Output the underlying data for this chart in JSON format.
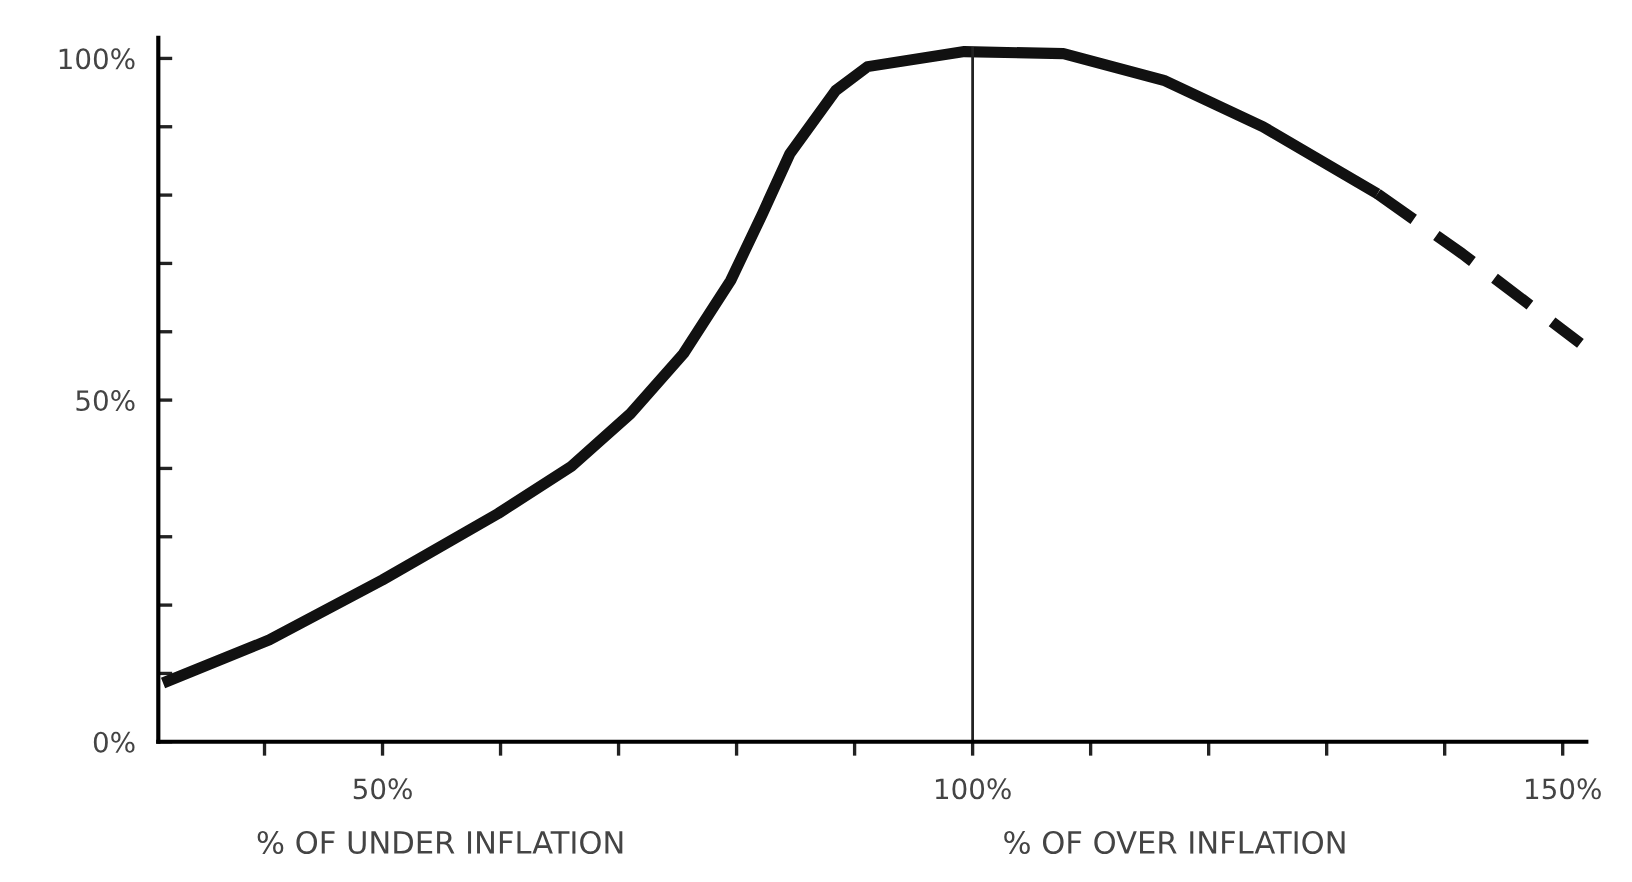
{
  "chart_data": {
    "type": "line",
    "series": [
      {
        "color": "#111111",
        "line_style": "solid",
        "x": [
          31.4,
          40.4,
          50,
          59.8,
          66,
          71,
          75.5,
          79.5,
          82.2,
          84.5,
          88.4,
          91.1,
          99.3,
          107.7,
          116.2,
          124.6,
          134.3
        ],
        "values": [
          8.6,
          14.9,
          23.7,
          33.4,
          40.3,
          48,
          56.8,
          67.5,
          77.3,
          86,
          95.3,
          98.8,
          101,
          100.7,
          96.8,
          90,
          80.2
        ]
      },
      {
        "color": "#111111",
        "line_style": "dashed",
        "x": [
          134.3,
          141.5,
          151.5
        ],
        "values": [
          80.2,
          71.4,
          58.3
        ]
      }
    ],
    "xlim": [
      31,
      152
    ],
    "ylim": [
      0,
      103
    ],
    "xticks": [
      {
        "value": 40,
        "label": null
      },
      {
        "value": 50,
        "label": "50%"
      },
      {
        "value": 60,
        "label": null
      },
      {
        "value": 70,
        "label": null
      },
      {
        "value": 80,
        "label": null
      },
      {
        "value": 90,
        "label": null
      },
      {
        "value": 100,
        "label": "100%"
      },
      {
        "value": 110,
        "label": null
      },
      {
        "value": 120,
        "label": null
      },
      {
        "value": 130,
        "label": null
      },
      {
        "value": 140,
        "label": null
      },
      {
        "value": 150,
        "label": "150%"
      }
    ],
    "yticks": [
      {
        "value": 0,
        "label": "0%"
      },
      {
        "value": 10,
        "label": null
      },
      {
        "value": 20,
        "label": null
      },
      {
        "value": 30,
        "label": null
      },
      {
        "value": 40,
        "label": null
      },
      {
        "value": 50,
        "label": "50%"
      },
      {
        "value": 60,
        "label": null
      },
      {
        "value": 70,
        "label": null
      },
      {
        "value": 80,
        "label": null
      },
      {
        "value": 90,
        "label": null
      },
      {
        "value": 100,
        "label": "100%"
      }
    ],
    "ref_lines": [
      {
        "axis": "x",
        "value": 100,
        "color": "#222222"
      }
    ],
    "annotations": [
      "% OF UNDER INFLATION",
      "% OF OVER INFLATION"
    ],
    "grid": false,
    "legend": false
  }
}
